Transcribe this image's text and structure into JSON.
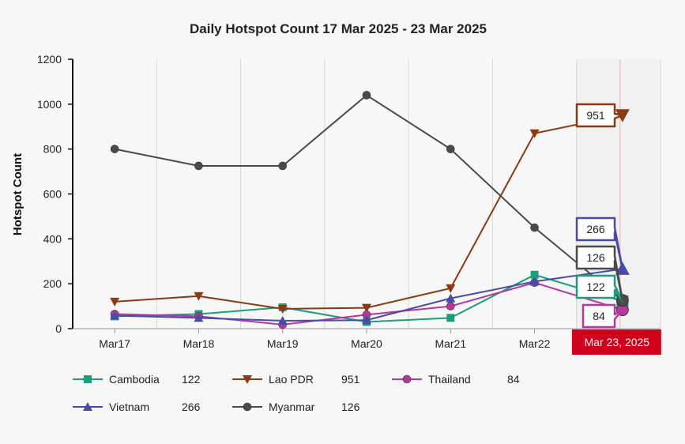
{
  "chart_data": {
    "type": "line",
    "title": "Daily Hotspot Count 17 Mar 2025 - 23 Mar 2025",
    "xlabel": "",
    "ylabel": "Hotspot Count",
    "ylim": [
      0,
      1200
    ],
    "yticks": [
      0,
      200,
      400,
      600,
      800,
      1000,
      1200
    ],
    "categories": [
      "Mar17",
      "Mar18",
      "Mar19",
      "Mar20",
      "Mar21",
      "Mar22",
      "Mar 23, 2025"
    ],
    "crosshair_label": "Mar 23, 2025",
    "grid": true,
    "legend_placement": "bottom",
    "series": [
      {
        "name": "Cambodia",
        "color": "#1a9e7e",
        "marker": "square",
        "values": [
          55,
          65,
          95,
          30,
          48,
          240,
          122
        ],
        "last_label": "122"
      },
      {
        "name": "Lao PDR",
        "color": "#8b3a12",
        "marker": "triangle-down",
        "values": [
          120,
          145,
          88,
          93,
          180,
          870,
          951
        ],
        "last_label": "951"
      },
      {
        "name": "Thailand",
        "color": "#b5389a",
        "marker": "circle",
        "values": [
          65,
          55,
          18,
          62,
          100,
          205,
          84
        ],
        "last_label": "84"
      },
      {
        "name": "Vietnam",
        "color": "#4a4aa8",
        "marker": "triangle-up",
        "values": [
          58,
          48,
          35,
          38,
          135,
          210,
          266
        ],
        "last_label": "266"
      },
      {
        "name": "Myanmar",
        "color": "#4a4a4a",
        "marker": "circle",
        "values": [
          800,
          725,
          725,
          1040,
          800,
          450,
          126
        ],
        "last_label": "126"
      }
    ]
  }
}
